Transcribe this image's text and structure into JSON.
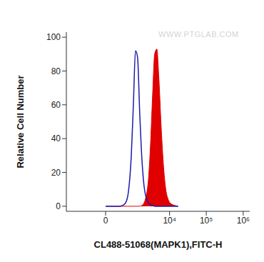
{
  "chart_data": {
    "type": "histogram",
    "xlabel": "CL488-51068(MAPK1),FITC-H",
    "ylabel": "Relative Cell Number",
    "annotation": "WWW.PTGLAB.COM",
    "x": [
      0,
      133,
      270,
      360,
      470,
      590,
      750,
      880,
      1030,
      1200,
      1400,
      1630,
      1890,
      2180,
      2520,
      2900,
      3340,
      3840,
      4420,
      5070,
      5820,
      6680,
      7640,
      9160,
      10960,
      13740,
      17160
    ],
    "series": [
      {
        "type": "line",
        "color": "#1c1ca8",
        "values": [
          0,
          0,
          0,
          0.5,
          2,
          8,
          30,
          60,
          92,
          88,
          55,
          28,
          12,
          5,
          2,
          1,
          0.5,
          0,
          0,
          0,
          0,
          0,
          0,
          0,
          0,
          0,
          0
        ]
      },
      {
        "type": "area",
        "color": "#e00000",
        "values": [
          0,
          0,
          0,
          0,
          0,
          0,
          0,
          0,
          0,
          0,
          0,
          0.5,
          2,
          6,
          15,
          35,
          65,
          90,
          93,
          75,
          48,
          26,
          12,
          4,
          1.5,
          0.5,
          0
        ]
      }
    ],
    "xlim": [
      -2000,
      1500000
    ],
    "xticks": [
      {
        "value": 0,
        "label": "0"
      },
      {
        "value": 10000,
        "label": "10⁴"
      },
      {
        "value": 100000,
        "label": "10⁵"
      },
      {
        "value": 1000000,
        "label": "10⁶"
      }
    ],
    "ylim": [
      -3,
      103
    ],
    "yticks": [
      0,
      20,
      40,
      60,
      80,
      100
    ],
    "grid": false
  }
}
